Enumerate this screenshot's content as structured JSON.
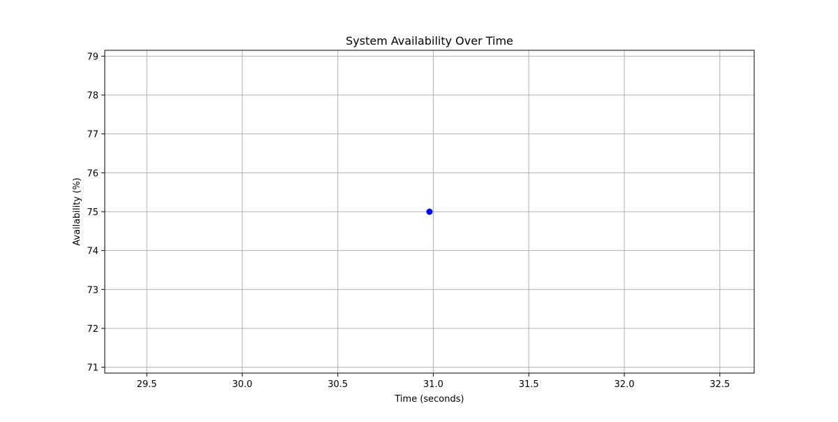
{
  "chart_data": {
    "type": "scatter",
    "title": "System Availability Over Time",
    "xlabel": "Time (seconds)",
    "ylabel": "Availability (%)",
    "xlim": [
      29.28,
      32.68
    ],
    "ylim": [
      70.85,
      79.15
    ],
    "xticks": [
      29.5,
      30.0,
      30.5,
      31.0,
      31.5,
      32.0,
      32.5
    ],
    "xtick_labels": [
      "29.5",
      "30.0",
      "30.5",
      "31.0",
      "31.5",
      "32.0",
      "32.5"
    ],
    "yticks": [
      71,
      72,
      73,
      74,
      75,
      76,
      77,
      78,
      79
    ],
    "ytick_labels": [
      "71",
      "72",
      "73",
      "74",
      "75",
      "76",
      "77",
      "78",
      "79"
    ],
    "grid": true,
    "series": [
      {
        "x": [
          30.98
        ],
        "y": [
          75
        ],
        "color": "#0000ff",
        "marker": "circle"
      }
    ]
  }
}
